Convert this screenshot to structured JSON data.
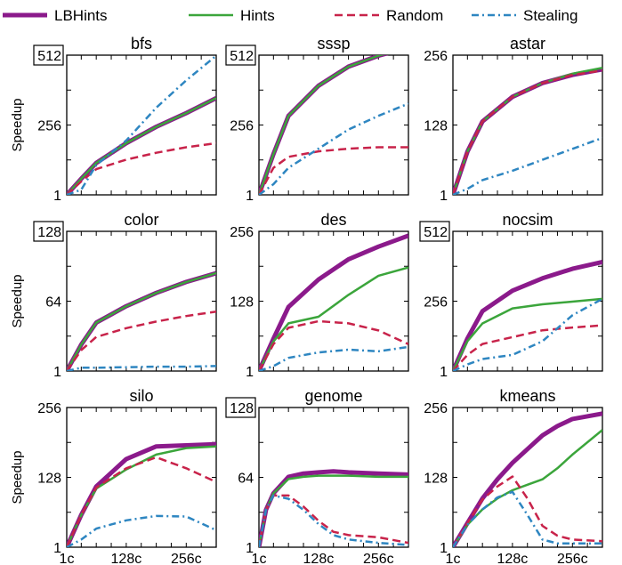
{
  "legend": {
    "placement": "top",
    "items": [
      {
        "name": "LBHints",
        "color": "#8B1A8B",
        "dash": "solid",
        "width": 5
      },
      {
        "name": "Hints",
        "color": "#3BA53B",
        "dash": "solid",
        "width": 2.5
      },
      {
        "name": "Random",
        "color": "#C8234A",
        "dash": "dashed",
        "width": 2.5
      },
      {
        "name": "Stealing",
        "color": "#2E86C1",
        "dash": "dashdot",
        "width": 2.5
      }
    ]
  },
  "chart_data": [
    {
      "type": "line",
      "title": "bfs",
      "ylabel": "Speedup",
      "ylim": [
        1,
        512
      ],
      "yticks": [
        "1",
        "256",
        "512"
      ],
      "ymax_boxed": true,
      "xlabels": [
        "",
        "",
        ""
      ],
      "x": [
        1,
        32,
        64,
        128,
        192,
        256,
        320
      ],
      "series": [
        {
          "name": "LBHints",
          "values": [
            1,
            60,
            118,
            190,
            250,
            300,
            355
          ]
        },
        {
          "name": "Hints",
          "values": [
            1,
            60,
            118,
            190,
            250,
            300,
            355
          ]
        },
        {
          "name": "Random",
          "values": [
            1,
            50,
            95,
            130,
            155,
            175,
            190
          ]
        },
        {
          "name": "Stealing",
          "values": [
            1,
            20,
            110,
            200,
            320,
            420,
            510
          ]
        }
      ]
    },
    {
      "type": "line",
      "title": "sssp",
      "ylabel": "",
      "ylim": [
        1,
        512
      ],
      "yticks": [
        "1",
        "256",
        "512"
      ],
      "ymax_boxed": true,
      "xlabels": [
        "",
        "",
        ""
      ],
      "x": [
        1,
        32,
        64,
        128,
        192,
        256,
        320
      ],
      "series": [
        {
          "name": "LBHints",
          "values": [
            1,
            150,
            290,
            400,
            470,
            510,
            540
          ]
        },
        {
          "name": "Hints",
          "values": [
            1,
            150,
            290,
            400,
            470,
            510,
            540
          ]
        },
        {
          "name": "Random",
          "values": [
            1,
            100,
            140,
            160,
            170,
            175,
            175
          ]
        },
        {
          "name": "Stealing",
          "values": [
            1,
            40,
            100,
            170,
            240,
            290,
            335
          ]
        }
      ]
    },
    {
      "type": "line",
      "title": "astar",
      "ylabel": "",
      "ylim": [
        1,
        256
      ],
      "yticks": [
        "1",
        "128",
        "256"
      ],
      "ymax_boxed": false,
      "xlabels": [
        "",
        "",
        ""
      ],
      "x": [
        1,
        32,
        64,
        128,
        192,
        256,
        320
      ],
      "series": [
        {
          "name": "LBHints",
          "values": [
            1,
            80,
            135,
            180,
            205,
            220,
            230
          ]
        },
        {
          "name": "Hints",
          "values": [
            1,
            80,
            135,
            180,
            205,
            222,
            233
          ]
        },
        {
          "name": "Random",
          "values": [
            1,
            80,
            135,
            180,
            205,
            220,
            228
          ]
        },
        {
          "name": "Stealing",
          "values": [
            1,
            12,
            28,
            45,
            65,
            85,
            105
          ]
        }
      ]
    },
    {
      "type": "line",
      "title": "color",
      "ylabel": "Speedup",
      "ylim": [
        1,
        128
      ],
      "yticks": [
        "1",
        "64",
        "128"
      ],
      "ymax_boxed": true,
      "xlabels": [
        "",
        "",
        ""
      ],
      "x": [
        1,
        32,
        64,
        128,
        192,
        256,
        320
      ],
      "series": [
        {
          "name": "LBHints",
          "values": [
            1,
            25,
            45,
            60,
            72,
            82,
            90
          ]
        },
        {
          "name": "Hints",
          "values": [
            1,
            25,
            45,
            60,
            72,
            82,
            90
          ]
        },
        {
          "name": "Random",
          "values": [
            1,
            20,
            32,
            40,
            46,
            51,
            55
          ]
        },
        {
          "name": "Stealing",
          "values": [
            1,
            4,
            4,
            4.5,
            5,
            5,
            5.5
          ]
        }
      ]
    },
    {
      "type": "line",
      "title": "des",
      "ylabel": "",
      "ylim": [
        1,
        256
      ],
      "yticks": [
        "1",
        "128",
        "256"
      ],
      "ymax_boxed": false,
      "xlabels": [
        "",
        "",
        ""
      ],
      "x": [
        1,
        32,
        64,
        128,
        192,
        256,
        320
      ],
      "series": [
        {
          "name": "LBHints",
          "values": [
            1,
            60,
            118,
            168,
            205,
            228,
            248
          ]
        },
        {
          "name": "Hints",
          "values": [
            1,
            55,
            88,
            100,
            140,
            175,
            190
          ]
        },
        {
          "name": "Random",
          "values": [
            1,
            50,
            80,
            92,
            88,
            75,
            50
          ]
        },
        {
          "name": "Stealing",
          "values": [
            1,
            10,
            25,
            35,
            40,
            37,
            45
          ]
        }
      ]
    },
    {
      "type": "line",
      "title": "nocsim",
      "ylabel": "",
      "ylim": [
        1,
        512
      ],
      "yticks": [
        "1",
        "256",
        "512"
      ],
      "ymax_boxed": true,
      "xlabels": [
        "",
        "",
        ""
      ],
      "x": [
        1,
        32,
        64,
        128,
        192,
        256,
        320
      ],
      "series": [
        {
          "name": "LBHints",
          "values": [
            1,
            120,
            220,
            295,
            340,
            375,
            400
          ]
        },
        {
          "name": "Hints",
          "values": [
            1,
            110,
            175,
            230,
            245,
            255,
            265
          ]
        },
        {
          "name": "Random",
          "values": [
            1,
            60,
            100,
            125,
            150,
            160,
            168
          ]
        },
        {
          "name": "Stealing",
          "values": [
            1,
            25,
            45,
            60,
            110,
            205,
            265
          ]
        }
      ]
    },
    {
      "type": "line",
      "title": "silo",
      "ylabel": "Speedup",
      "ylim": [
        1,
        256
      ],
      "yticks": [
        "1",
        "128",
        "256"
      ],
      "ymax_boxed": false,
      "xlabels": [
        "1c",
        "128c",
        "256c"
      ],
      "x": [
        1,
        32,
        64,
        128,
        192,
        256,
        320
      ],
      "series": [
        {
          "name": "LBHints",
          "values": [
            1,
            60,
            112,
            162,
            185,
            187,
            189
          ]
        },
        {
          "name": "Hints",
          "values": [
            1,
            60,
            108,
            143,
            170,
            182,
            185
          ]
        },
        {
          "name": "Random",
          "values": [
            1,
            60,
            110,
            145,
            165,
            145,
            120
          ]
        },
        {
          "name": "Stealing",
          "values": [
            1,
            15,
            35,
            50,
            58,
            57,
            32
          ]
        }
      ]
    },
    {
      "type": "line",
      "title": "genome",
      "ylabel": "",
      "ylim": [
        1,
        128
      ],
      "yticks": [
        "1",
        "64",
        "128"
      ],
      "ymax_boxed": true,
      "xlabels": [
        "1c",
        "128c",
        "256c"
      ],
      "x": [
        1,
        16,
        32,
        64,
        96,
        128,
        160,
        192,
        256,
        320
      ],
      "series": [
        {
          "name": "LBHints",
          "values": [
            1,
            35,
            50,
            65,
            68,
            69,
            70,
            69,
            68,
            67
          ]
        },
        {
          "name": "Hints",
          "values": [
            1,
            35,
            50,
            63,
            65,
            66,
            66,
            66,
            65,
            65
          ]
        },
        {
          "name": "Random",
          "values": [
            1,
            35,
            48,
            48,
            38,
            25,
            15,
            12,
            10,
            5
          ]
        },
        {
          "name": "Stealing",
          "values": [
            1,
            35,
            48,
            45,
            35,
            22,
            12,
            8,
            5,
            3
          ]
        }
      ]
    },
    {
      "type": "line",
      "title": "kmeans",
      "ylabel": "",
      "ylim": [
        1,
        256
      ],
      "yticks": [
        "1",
        "128",
        "256"
      ],
      "ymax_boxed": false,
      "xlabels": [
        "1c",
        "128c",
        "256c"
      ],
      "x": [
        1,
        32,
        64,
        96,
        128,
        160,
        192,
        224,
        256,
        320
      ],
      "series": [
        {
          "name": "LBHints",
          "values": [
            1,
            45,
            90,
            125,
            155,
            180,
            205,
            222,
            235,
            245
          ]
        },
        {
          "name": "Hints",
          "values": [
            1,
            42,
            70,
            90,
            105,
            115,
            125,
            145,
            170,
            215
          ]
        },
        {
          "name": "Random",
          "values": [
            1,
            45,
            88,
            112,
            130,
            90,
            40,
            22,
            15,
            12
          ]
        },
        {
          "name": "Stealing",
          "values": [
            1,
            42,
            70,
            92,
            102,
            60,
            15,
            8,
            8,
            8
          ]
        }
      ]
    }
  ]
}
